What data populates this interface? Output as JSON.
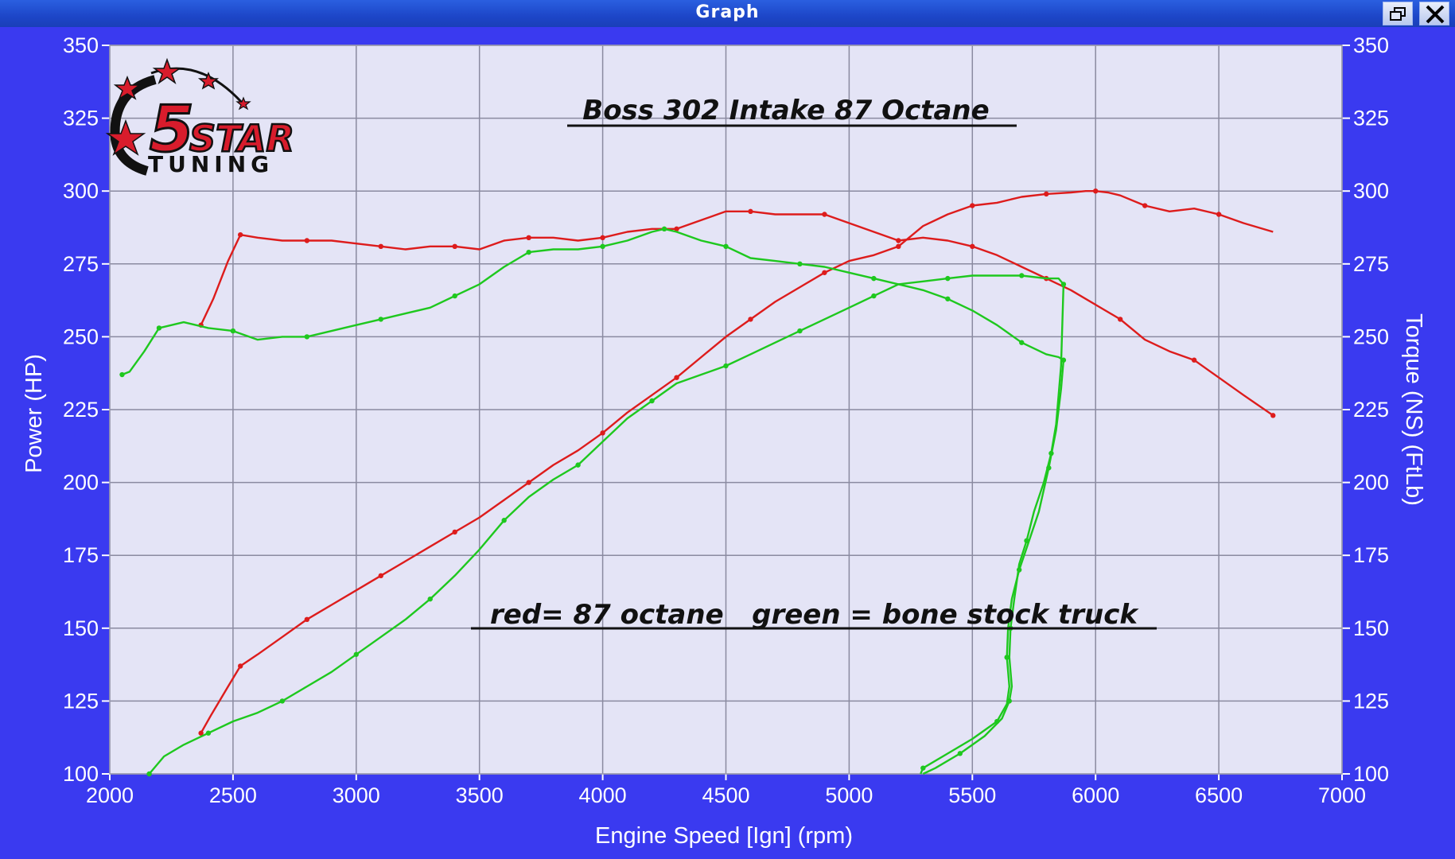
{
  "window": {
    "title": "Graph"
  },
  "colors": {
    "background": "#3a3af0",
    "plot_area": "#e4e4f6",
    "grid": "#8a8aa0",
    "red": "#dd1c1c",
    "green": "#1ec81e",
    "text": "#ffffff"
  },
  "icons": [
    "restore-icon",
    "close-icon"
  ],
  "logo": {
    "number": "5",
    "brand": "STAR",
    "subtitle": "TUNING"
  },
  "annotations": {
    "title": "Boss 302 Intake 87 Octane",
    "legend_note": "red= 87 octane   green = bone stock truck"
  },
  "chart_data": {
    "type": "line",
    "xlabel": "Engine Speed [Ign] (rpm)",
    "ylabel_left": "Power (HP)",
    "ylabel_right": "Torque (NS) (FtLb)",
    "xlim": [
      2000,
      7000
    ],
    "ylim": [
      100,
      350
    ],
    "x_ticks": [
      "2000",
      "2500",
      "3000",
      "3500",
      "4000",
      "4500",
      "5000",
      "5500",
      "6000",
      "6500",
      "7000"
    ],
    "y_ticks": [
      "100",
      "125",
      "150",
      "175",
      "200",
      "225",
      "250",
      "275",
      "300",
      "325",
      "350"
    ],
    "grid": true,
    "series": [
      {
        "color": "red",
        "kind": "power",
        "x": [
          2370,
          2410,
          2480,
          2530,
          2600,
          2700,
          2800,
          2900,
          3000,
          3100,
          3200,
          3300,
          3400,
          3500,
          3600,
          3700,
          3800,
          3900,
          4000,
          4100,
          4200,
          4300,
          4400,
          4500,
          4600,
          4700,
          4800,
          4900,
          5000,
          5100,
          5200,
          5300,
          5400,
          5500,
          5600,
          5700,
          5800,
          5900,
          5960,
          6000,
          6050,
          6100,
          6200,
          6300,
          6400,
          6500,
          6600,
          6720
        ],
        "y": [
          114,
          120,
          130,
          137,
          141,
          147,
          153,
          158,
          163,
          168,
          173,
          178,
          183,
          188,
          194,
          200,
          206,
          211,
          217,
          224,
          230,
          236,
          243,
          250,
          256,
          262,
          267,
          272,
          276,
          278,
          281,
          288,
          292,
          295,
          296,
          298,
          299,
          299.5,
          300,
          300,
          299.5,
          298.5,
          295,
          293,
          294,
          292,
          289,
          286
        ]
      },
      {
        "color": "red",
        "kind": "torque",
        "x": [
          2370,
          2420,
          2480,
          2530,
          2600,
          2700,
          2800,
          2900,
          3000,
          3100,
          3200,
          3300,
          3400,
          3500,
          3600,
          3700,
          3800,
          3900,
          4000,
          4100,
          4200,
          4300,
          4400,
          4500,
          4600,
          4700,
          4800,
          4900,
          5000,
          5100,
          5200,
          5300,
          5400,
          5500,
          5600,
          5700,
          5800,
          5900,
          6000,
          6100,
          6200,
          6300,
          6400,
          6500,
          6600,
          6720
        ],
        "y": [
          254,
          263,
          276,
          285,
          284,
          283,
          283,
          283,
          282,
          281,
          280,
          281,
          281,
          280,
          283,
          284,
          284,
          283,
          284,
          286,
          287,
          287,
          290,
          293,
          293,
          292,
          292,
          292,
          289,
          286,
          283,
          284,
          283,
          281,
          278,
          274,
          270,
          266,
          261,
          256,
          249,
          245,
          242,
          236,
          230,
          223
        ]
      },
      {
        "color": "green",
        "kind": "power",
        "x": [
          2160,
          2220,
          2300,
          2400,
          2500,
          2600,
          2700,
          2800,
          2900,
          3000,
          3100,
          3200,
          3300,
          3400,
          3500,
          3600,
          3700,
          3800,
          3900,
          4000,
          4100,
          4200,
          4300,
          4400,
          4500,
          4600,
          4700,
          4800,
          4900,
          5000,
          5100,
          5200,
          5300,
          5400,
          5500,
          5600,
          5700,
          5800,
          5850,
          5870,
          5860,
          5840,
          5820,
          5790,
          5750,
          5720,
          5690,
          5670,
          5655,
          5650,
          5660,
          5650,
          5620,
          5550,
          5450,
          5350,
          5300
        ],
        "y": [
          100,
          106,
          110,
          114,
          118,
          121,
          125,
          130,
          135,
          141,
          147,
          153,
          160,
          168,
          177,
          187,
          195,
          201,
          206,
          214,
          222,
          228,
          234,
          237,
          240,
          244,
          248,
          252,
          256,
          260,
          264,
          268,
          269,
          270,
          271,
          271,
          271,
          270,
          270,
          268,
          240,
          220,
          210,
          200,
          190,
          180,
          172,
          160,
          150,
          140,
          130,
          125,
          119,
          113,
          107,
          102,
          100
        ]
      },
      {
        "color": "green",
        "kind": "torque",
        "x": [
          2050,
          2080,
          2140,
          2200,
          2300,
          2400,
          2500,
          2600,
          2700,
          2800,
          2900,
          3000,
          3100,
          3200,
          3300,
          3400,
          3500,
          3600,
          3700,
          3800,
          3900,
          4000,
          4100,
          4200,
          4250,
          4300,
          4400,
          4500,
          4600,
          4700,
          4800,
          4900,
          5000,
          5100,
          5200,
          5300,
          5400,
          5500,
          5600,
          5700,
          5800,
          5850,
          5870,
          5860,
          5840,
          5810,
          5770,
          5730,
          5690,
          5660,
          5645,
          5640,
          5650,
          5640,
          5600,
          5500,
          5400,
          5300,
          5290
        ],
        "y": [
          237,
          238,
          245,
          253,
          255,
          253,
          252,
          249,
          250,
          250,
          252,
          254,
          256,
          258,
          260,
          264,
          268,
          274,
          279,
          280,
          280,
          281,
          283,
          286,
          287,
          286,
          283,
          281,
          277,
          276,
          275,
          274,
          272,
          270,
          268,
          266,
          263,
          259,
          254,
          248,
          244,
          243,
          242,
          232,
          218,
          205,
          190,
          180,
          170,
          160,
          150,
          140,
          130,
          124,
          118,
          112,
          107,
          102,
          100
        ]
      }
    ]
  }
}
